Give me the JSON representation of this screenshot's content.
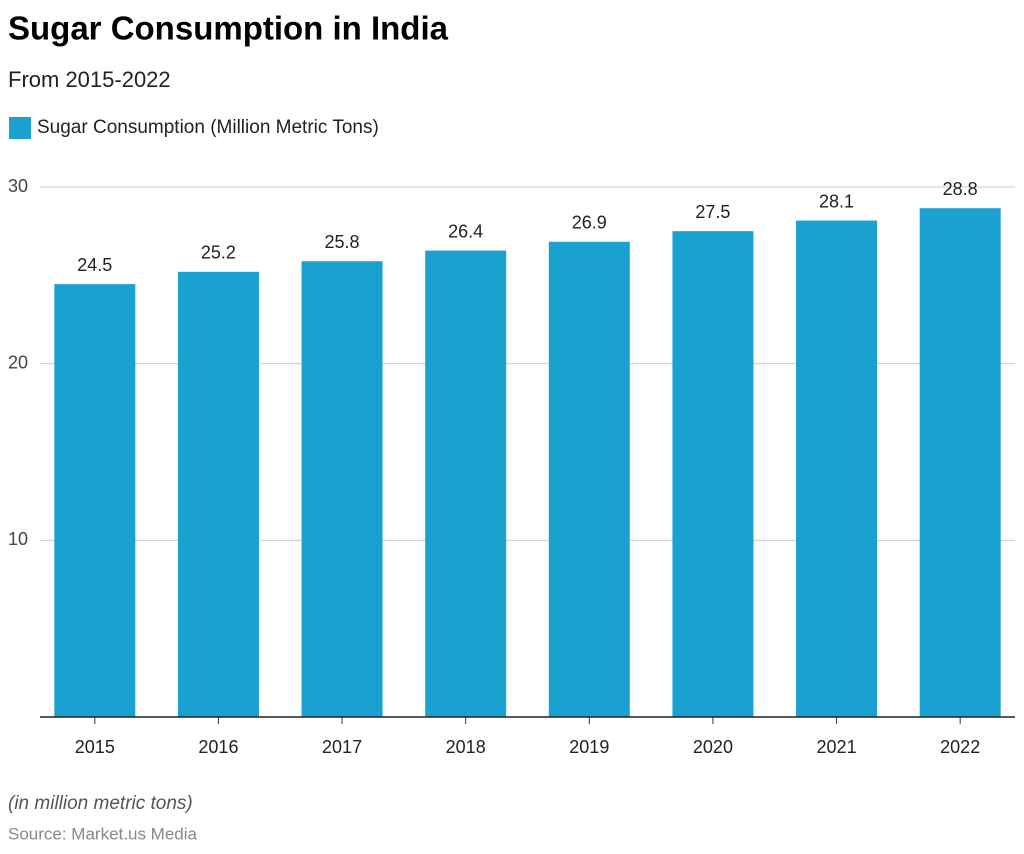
{
  "chart_data": {
    "type": "bar",
    "title": "Sugar Consumption in India",
    "subtitle": "From 2015-2022",
    "series": [
      {
        "name": "Sugar Consumption (Million Metric Tons)",
        "color": "#1ba1cf",
        "values": [
          24.5,
          25.2,
          25.8,
          26.4,
          26.9,
          27.5,
          28.1,
          28.8
        ]
      }
    ],
    "categories": [
      "2015",
      "2016",
      "2017",
      "2018",
      "2019",
      "2020",
      "2021",
      "2022"
    ],
    "ylim": [
      0,
      30
    ],
    "yticks": [
      10,
      20,
      30
    ],
    "grid": true,
    "note": "(in million metric tons)",
    "source": "Source: Market.us Media"
  }
}
